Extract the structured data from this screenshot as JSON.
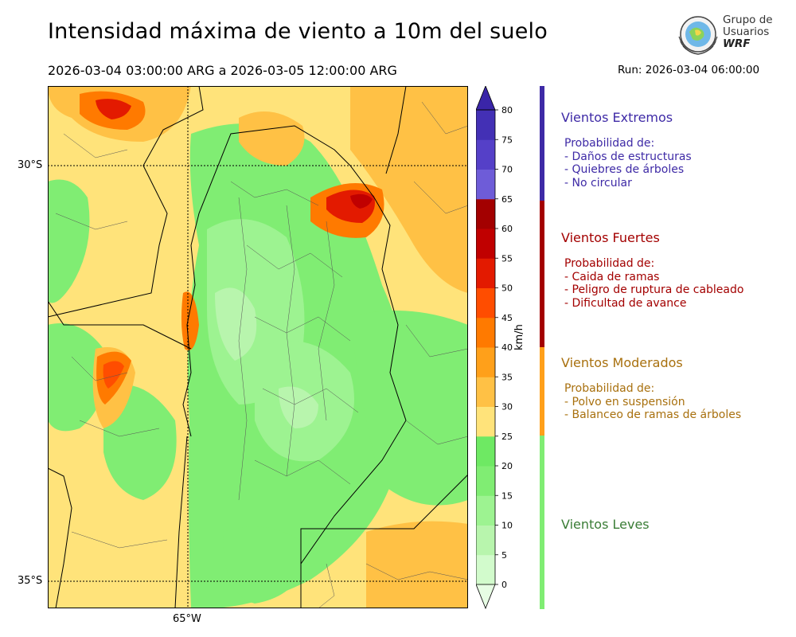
{
  "title": "Intensidad máxima de viento a 10m del suelo",
  "period": "2026-03-04 03:00:00 ARG  a  2026-03-05 12:00:00 ARG",
  "run": "Run: 2026-03-04 06:00:00",
  "logo": {
    "line1": "Grupo de",
    "line2": "Usuarios",
    "line3": "WRF"
  },
  "map": {
    "lat_labels": [
      "30°S",
      "35°S"
    ],
    "lon_labels": [
      "65°W"
    ]
  },
  "colorbar": {
    "unit": "km/h",
    "ticks": [
      "0",
      "5",
      "10",
      "15",
      "20",
      "25",
      "30",
      "35",
      "40",
      "45",
      "50",
      "55",
      "60",
      "65",
      "70",
      "75",
      "80"
    ],
    "colors": [
      "#e7fde4",
      "#d2fbcc",
      "#b8f5ad",
      "#9df391",
      "#80ed73",
      "#6ee963",
      "#ffe37a",
      "#ffc145",
      "#ffa01a",
      "#ff7a00",
      "#ff4d00",
      "#e31a00",
      "#c00000",
      "#a30000",
      "#6e5cd8",
      "#5540c8",
      "#4330b5",
      "#3a25a8"
    ]
  },
  "categories": [
    {
      "title": "Vientos Extremos",
      "color": "#3e2aa6",
      "lines": "Probabilidad de:\n- Daños de estructuras\n- Quiebres de árboles\n- No circular"
    },
    {
      "title": "Vientos Fuertes",
      "color": "#a30000",
      "lines": "Probabilidad de:\n- Caida de ramas\n- Peligro de ruptura de cableado\n- Dificultad de avance"
    },
    {
      "title": "Vientos Moderados",
      "color": "#a8700e",
      "lines": "Probabilidad de:\n- Polvo en suspensión\n- Balanceo de ramas de árboles"
    },
    {
      "title": "Vientos Leves",
      "color": "#3a7d36",
      "lines": ""
    }
  ]
}
